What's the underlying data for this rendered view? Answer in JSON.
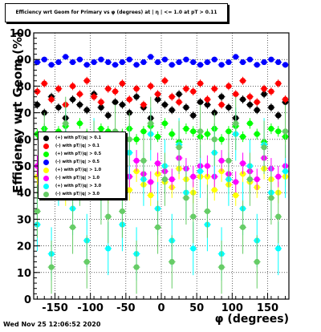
{
  "timestamp": "Wed Nov 25 12:06:52 2020",
  "chart_data": {
    "type": "scatter",
    "title": "Efficiency wrt Geom for Primary vs φ (degrees) at | η | <= 1.0 at pT > 0.11",
    "xlabel": "φ (degrees)",
    "ylabel": "Efficiency wrt Geom (%)",
    "xlim": [
      -180,
      180
    ],
    "ylim": [
      0,
      100
    ],
    "grid": true,
    "legend_placement": "middle-left",
    "x_ticks": [
      "-150",
      "-100",
      "-50",
      "0",
      "50",
      "100",
      "150"
    ],
    "y_ticks": [
      "0",
      "10",
      "20",
      "30",
      "40",
      "50",
      "60",
      "70",
      "80",
      "90",
      "100"
    ],
    "series": [
      {
        "name": "(+) with pT/|q| > 0.1",
        "color": "#000000",
        "level": 73,
        "spread": 4,
        "err": 1.5,
        "values": [
          73,
          70,
          76,
          72,
          68,
          75,
          73,
          71,
          77,
          72,
          69,
          74,
          73,
          70,
          76,
          72,
          68,
          75,
          73,
          71,
          77,
          72,
          69,
          74,
          73,
          70,
          76,
          72,
          68,
          75,
          73,
          71,
          77,
          72,
          69,
          74
        ]
      },
      {
        "name": "(-) with pT/|q| > 0.1",
        "color": "#ff0000",
        "level": 77,
        "spread": 4,
        "err": 1.5,
        "values": [
          78,
          81,
          75,
          79,
          73,
          80,
          77,
          82,
          76,
          74,
          79,
          78,
          81,
          75,
          79,
          73,
          80,
          77,
          82,
          76,
          74,
          79,
          78,
          81,
          75,
          79,
          73,
          80,
          77,
          82,
          76,
          74,
          79,
          78,
          81,
          75
        ]
      },
      {
        "name": "(+) with pT/|q| > 0.5",
        "color": "#00ff00",
        "level": 62,
        "spread": 3,
        "err": 2,
        "values": [
          62,
          64,
          60,
          63,
          65,
          61,
          66,
          62,
          59,
          64,
          63,
          61,
          62,
          64,
          60,
          63,
          65,
          61,
          66,
          62,
          59,
          64,
          63,
          61,
          62,
          64,
          60,
          63,
          65,
          61,
          66,
          62,
          59,
          64,
          63,
          61
        ]
      },
      {
        "name": "(-) with pT/|q| > 0.5",
        "color": "#0000ff",
        "level": 89,
        "spread": 1,
        "err": 1,
        "values": [
          89,
          90,
          88,
          89,
          91,
          89,
          90,
          88,
          89,
          90,
          89,
          88,
          89,
          90,
          88,
          89,
          91,
          89,
          90,
          88,
          89,
          90,
          89,
          88,
          89,
          90,
          88,
          89,
          91,
          89,
          90,
          88,
          89,
          90,
          89,
          88
        ]
      },
      {
        "name": "(+) with pT/|q| > 1.0",
        "color": "#ffff00",
        "level": 44,
        "spread": 5,
        "err": 4,
        "values": [
          46,
          41,
          48,
          43,
          39,
          47,
          44,
          42,
          49,
          45,
          40,
          46,
          46,
          41,
          48,
          43,
          39,
          47,
          44,
          42,
          49,
          45,
          40,
          46,
          46,
          41,
          48,
          43,
          39,
          47,
          44,
          42,
          49,
          45,
          40,
          46
        ]
      },
      {
        "name": "(-) with pT/|q| > 1.0",
        "color": "#ff00ff",
        "level": 48,
        "spread": 4,
        "err": 4,
        "values": [
          50,
          46,
          52,
          47,
          44,
          51,
          48,
          45,
          53,
          49,
          46,
          50,
          50,
          46,
          52,
          47,
          44,
          51,
          48,
          45,
          53,
          49,
          46,
          50,
          50,
          46,
          52,
          47,
          44,
          51,
          48,
          45,
          53,
          49,
          46,
          50
        ]
      },
      {
        "name": "(+) with pT/|q| > 3.0",
        "color": "#00ffff",
        "level": 40,
        "spread": 15,
        "err": 10,
        "values": [
          28,
          55,
          17,
          45,
          62,
          34,
          50,
          22,
          58,
          40,
          19,
          48,
          28,
          55,
          17,
          45,
          62,
          34,
          50,
          22,
          58,
          40,
          19,
          48,
          28,
          55,
          17,
          45,
          62,
          34,
          50,
          22,
          58,
          40,
          19,
          48
        ]
      },
      {
        "name": "(-) with pT/|q| > 3.0",
        "color": "#66cc66",
        "level": 45,
        "spread": 15,
        "err": 10,
        "values": [
          33,
          60,
          12,
          52,
          66,
          27,
          45,
          14,
          57,
          38,
          31,
          63,
          33,
          60,
          12,
          52,
          66,
          27,
          45,
          14,
          57,
          38,
          31,
          63,
          33,
          60,
          12,
          52,
          66,
          27,
          45,
          14,
          57,
          38,
          31,
          63
        ]
      }
    ]
  }
}
